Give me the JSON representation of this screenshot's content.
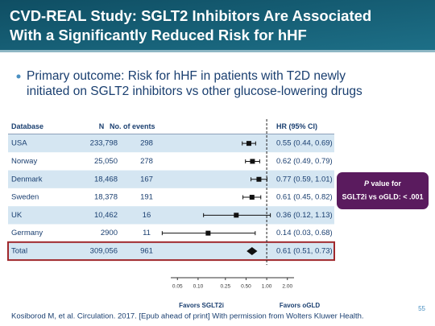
{
  "header": {
    "title": [
      "CVD-REAL Study: SGLT2 Inhibitors Are Associated",
      "With a Significantly Reduced Risk for hHF"
    ]
  },
  "bullet": [
    "Primary outcome: Risk for hHF in patients with T2D newly",
    "initiated on SGLT2 inhibitors vs other glucose-lowering drugs"
  ],
  "chart_data": {
    "type": "forest",
    "columns": [
      "Database",
      "N",
      "No. of events",
      "HR (95% CI)"
    ],
    "categories": [
      "USA",
      "Norway",
      "Denmark",
      "Sweden",
      "UK",
      "Germany",
      "Total"
    ],
    "n": [
      "233,798",
      "25,050",
      "18,468",
      "18,378",
      "10,462",
      "2900",
      "309,056"
    ],
    "events": [
      298,
      278,
      167,
      191,
      16,
      11,
      961
    ],
    "values": [
      0.55,
      0.62,
      0.77,
      0.61,
      0.36,
      0.14,
      0.61
    ],
    "ci_low": [
      0.44,
      0.49,
      0.59,
      0.45,
      0.12,
      0.03,
      0.51
    ],
    "ci_high": [
      0.69,
      0.79,
      1.01,
      0.82,
      1.13,
      0.68,
      0.73
    ],
    "value_labels": [
      "0.55 (0.44, 0.69)",
      "0.62 (0.49, 0.79)",
      "0.77 (0.59, 1.01)",
      "0.61 (0.45, 0.82)",
      "0.36 (0.12, 1.13)",
      "0.14 (0.03, 0.68)",
      "0.61 (0.51, 0.73)"
    ],
    "xlim": [
      0.04,
      2.5
    ],
    "log_x": true,
    "reference": 1,
    "xticks": [
      0.05,
      {
        "value": 0.1,
        "label": "0.10"
      },
      0.25,
      {
        "value": 0.5,
        "label": "0.50"
      },
      {
        "value": 1,
        "label": "1.00"
      },
      {
        "value": 2,
        "label": "2.00"
      }
    ],
    "x_labels": [
      "Favors SGLT2i",
      "Favors oGLD"
    ],
    "color": "#111111",
    "annotation": [
      "P",
      "value for",
      "SGLT2i vs oGLD: < .001"
    ]
  },
  "footer": {
    "citation": "Kosiborod M, et al. Circulation. 2017. [Epub ahead of print] With permission from Wolters Kluwer Health.",
    "page": 55
  }
}
